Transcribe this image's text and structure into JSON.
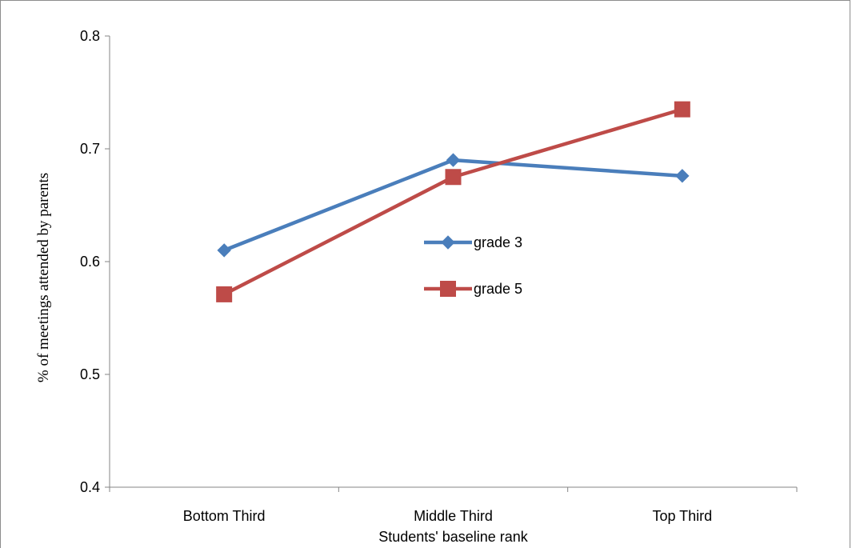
{
  "chart_data": {
    "type": "line",
    "title": "",
    "xlabel": "Students' baseline rank",
    "ylabel": "% of meetings attended by parents",
    "categories": [
      "Bottom Third",
      "Middle Third",
      "Top Third"
    ],
    "ylim": [
      0.4,
      0.8
    ],
    "yticks": [
      0.4,
      0.5,
      0.6,
      0.7,
      0.8
    ],
    "ytick_labels": [
      "0.4",
      "0.5",
      "0.6",
      "0.7",
      "0.8"
    ],
    "grid": false,
    "legend_position": "center",
    "series": [
      {
        "name": "grade 3",
        "values": [
          0.61,
          0.69,
          0.676
        ],
        "color": "#4a7ebb",
        "marker": "diamond"
      },
      {
        "name": "grade 5",
        "values": [
          0.571,
          0.675,
          0.735
        ],
        "color": "#be4b48",
        "marker": "square"
      }
    ]
  }
}
